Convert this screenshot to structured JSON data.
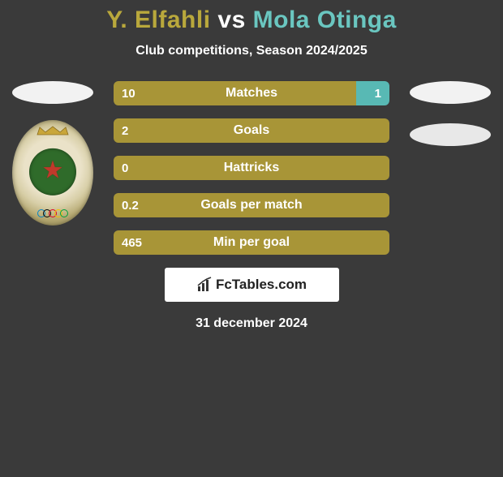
{
  "title": {
    "player1": "Y. Elfahli",
    "vs": "vs",
    "player2": "Mola Otinga",
    "color_p1": "#b9a83c",
    "color_vs": "#ffffff",
    "color_p2": "#6ac6c0"
  },
  "subtitle": "Club competitions, Season 2024/2025",
  "colors": {
    "bg": "#3a3a3a",
    "p1": "#a89537",
    "p2": "#58b9b4",
    "oval_left": "#f2f2f2",
    "oval_right_top": "#f2f2f2",
    "oval_right_bottom": "#e8e8e8",
    "brand_bg": "#ffffff"
  },
  "bars": [
    {
      "label": "Matches",
      "left": "10",
      "right": "1",
      "left_pct": 88,
      "right_pct": 12
    },
    {
      "label": "Goals",
      "left": "2",
      "right": "",
      "left_pct": 100,
      "right_pct": 0
    },
    {
      "label": "Hattricks",
      "left": "0",
      "right": "",
      "left_pct": 100,
      "right_pct": 0
    },
    {
      "label": "Goals per match",
      "left": "0.2",
      "right": "",
      "left_pct": 100,
      "right_pct": 0
    },
    {
      "label": "Min per goal",
      "left": "465",
      "right": "",
      "left_pct": 100,
      "right_pct": 0
    }
  ],
  "brand": "FcTables.com",
  "date": "31 december 2024",
  "rings": [
    "#0085c7",
    "#000000",
    "#df0024",
    "#f4c300",
    "#009f3d"
  ]
}
